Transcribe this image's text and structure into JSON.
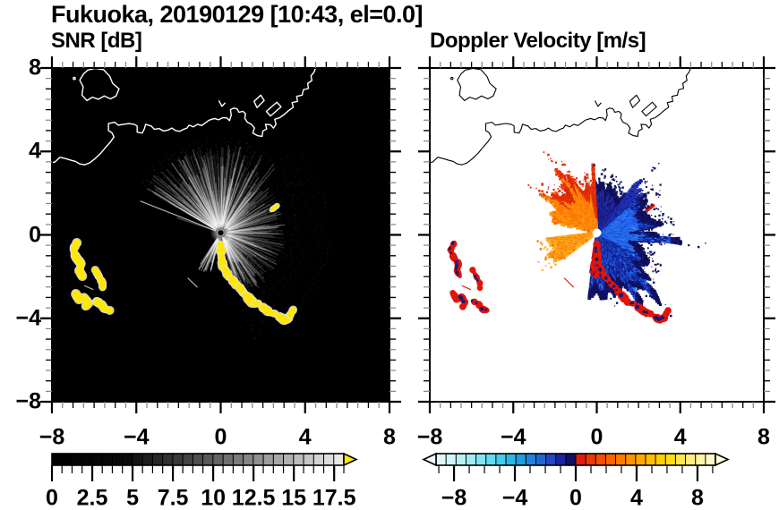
{
  "title": "Fukuoka, 20190129 [10:43, el=0.0]",
  "panels": {
    "snr": {
      "subtitle": "SNR [dB]",
      "background": "#000000",
      "coast_color": "#ffffff"
    },
    "velocity": {
      "subtitle": "Doppler Velocity [m/s]",
      "background": "#ffffff",
      "coast_color": "#000000"
    }
  },
  "axis": {
    "lim": [
      -8,
      8
    ],
    "x_labels": [
      "−8",
      "−4",
      "0",
      "4",
      "8"
    ],
    "x_values": [
      -8,
      -4,
      0,
      4,
      8
    ],
    "y_labels": [
      "8",
      "4",
      "0",
      "−4",
      "−8"
    ],
    "y_values": [
      8,
      4,
      0,
      -4,
      -8
    ],
    "minor_step": 0.5
  },
  "colorbars": {
    "snr": {
      "labels": [
        "0",
        "2.5",
        "5",
        "7.5",
        "10",
        "12.5",
        "15",
        "17.5"
      ],
      "values": [
        0,
        2.5,
        5,
        7.5,
        10,
        12.5,
        15,
        17.5
      ],
      "range": [
        0,
        18.1
      ],
      "cells": 29,
      "gray_stops": [
        [
          0,
          "#000000"
        ],
        [
          4.7,
          "#0b0b0b"
        ],
        [
          8,
          "#3c3c3c"
        ],
        [
          11,
          "#707070"
        ],
        [
          14,
          "#a6a6a6"
        ],
        [
          17.5,
          "#e2e2e2"
        ],
        [
          18.1,
          "#f0f0f0"
        ]
      ],
      "over_arrow": "#ffe800"
    },
    "velocity": {
      "labels": [
        "−8",
        "−4",
        "0",
        "4",
        "8"
      ],
      "values": [
        -8,
        -4,
        0,
        4,
        8
      ],
      "range": [
        -9.18,
        9.18
      ],
      "cells": 28,
      "under_arrow": "#eafdfd",
      "over_arrow": "#fffde6"
    }
  },
  "chart_data": {
    "type": "heatmap",
    "title": "Fukuoka, 20190129 [10:43, el=0.0]",
    "subplots": [
      "SNR [dB]",
      "Doppler Velocity [m/s]"
    ],
    "x_range": [
      -8,
      8
    ],
    "y_range": [
      -8,
      8
    ],
    "radar_center": [
      0.0,
      0.1
    ],
    "velocity_stops_negative": [
      [
        -9.2,
        "#e6fbfa"
      ],
      [
        -8,
        "#c9f4f6"
      ],
      [
        -6.5,
        "#8fe9f1"
      ],
      [
        -5,
        "#47d0ec"
      ],
      [
        -4,
        "#22abe4"
      ],
      [
        -3,
        "#1f86da"
      ],
      [
        -2.2,
        "#2361cc"
      ],
      [
        -1.5,
        "#2340c0"
      ],
      [
        -0.9,
        "#1b1ea0"
      ],
      [
        -0.45,
        "#12126e"
      ],
      [
        -0.05,
        "#0a0a42"
      ]
    ],
    "velocity_stops_positive": [
      [
        0.05,
        "#dc0f0f"
      ],
      [
        0.8,
        "#e93206"
      ],
      [
        1.8,
        "#f65300"
      ],
      [
        3,
        "#fe7d00"
      ],
      [
        4,
        "#ffa000"
      ],
      [
        5,
        "#ffc100"
      ],
      [
        6,
        "#ffdb00"
      ],
      [
        7,
        "#ffe95a"
      ],
      [
        8,
        "#fff49c"
      ],
      [
        9.2,
        "#fffbd8"
      ]
    ],
    "palettes": {
      "orange_core": [
        "#ff8c00",
        "#fb7400",
        "#ffa01e",
        "#f56a00",
        "#ff9612"
      ],
      "red_edge": [
        "#e32c0a",
        "#d82410",
        "#ef3c00"
      ],
      "west_orange": [
        "#ff9000",
        "#ffa81e",
        "#f57800",
        "#ffb62e"
      ],
      "navy": [
        "#1a1a84",
        "#141470",
        "#222ca0"
      ],
      "navy_dark": [
        "#10105c",
        "#0d0d4e",
        "#161678"
      ],
      "blue_bright": [
        "#1e5ee8",
        "#2f7cf4",
        "#1246d0",
        "#3c8cf8",
        "#1656e0"
      ],
      "blue_dark": [
        "#1733b4",
        "#101e8c",
        "#141c96",
        "#0f1474"
      ],
      "clutter_snr": "#ffe800",
      "clutter_vel": "#e21408",
      "fleck_navy": "#191975"
    },
    "echo": {
      "snr_fans": [
        [
          50,
          150,
          1.2,
          4.2,
          240,
          0.3
        ],
        [
          -75,
          50,
          0.8,
          3.2,
          260,
          0.22
        ],
        [
          237,
          256,
          0.9,
          2.1,
          26,
          0.45
        ],
        [
          284,
          304,
          0.8,
          1.7,
          14,
          0.3
        ]
      ],
      "snr_haze": [
        [
          50,
          150,
          4.5,
          1300,
          0.16
        ],
        [
          -75,
          50,
          5.3,
          1600,
          0.11
        ],
        [
          -75,
          -40,
          2.9,
          500,
          0.18
        ]
      ],
      "snr_special_rays": [
        [
          158.5,
          4.1,
          0.75
        ],
        [
          161,
          2.2,
          0.3
        ],
        [
          -63,
          2.5,
          0.5
        ],
        [
          -70,
          2.1,
          0.45
        ],
        [
          -93,
          1.5,
          0.55
        ]
      ],
      "vel_fans": {
        "blue": [
          -97,
          55,
          2.55
        ],
        "navy": [
          55,
          93,
          2.25
        ],
        "orange": [
          93,
          168,
          2.55
        ],
        "west_orange": [
          187,
          217,
          2.1
        ],
        "red_strip": [
          -99,
          -84,
          1.95
        ]
      },
      "dotted_ray_az": 157
    },
    "clutter": {
      "arc": [
        {
          "pts": [
            [
              0.0,
              -0.45
            ],
            [
              0.02,
              -0.9
            ]
          ],
          "w": 0.17
        },
        {
          "pts": [
            [
              0.03,
              -1.05
            ],
            [
              0.1,
              -1.5
            ]
          ],
          "w": 0.17
        },
        {
          "pts": [
            [
              0.18,
              -1.62
            ],
            [
              0.38,
              -2.0
            ]
          ],
          "w": 0.16
        },
        {
          "pts": [
            [
              0.5,
              -2.1
            ],
            [
              0.72,
              -2.38
            ]
          ],
          "w": 0.17
        },
        {
          "pts": [
            [
              0.88,
              -2.5
            ],
            [
              1.08,
              -2.78
            ]
          ],
          "w": 0.16
        },
        {
          "pts": [
            [
              1.22,
              -2.92
            ],
            [
              1.48,
              -3.22
            ]
          ],
          "w": 0.18
        },
        {
          "pts": [
            [
              1.62,
              -3.32
            ],
            [
              1.82,
              -3.28
            ]
          ],
          "w": 0.12
        },
        {
          "pts": [
            [
              2.0,
              -3.48
            ],
            [
              2.32,
              -3.72
            ],
            [
              2.58,
              -3.78
            ]
          ],
          "w": 0.17
        },
        {
          "pts": [
            [
              2.78,
              -3.92
            ],
            [
              3.02,
              -4.08
            ],
            [
              3.22,
              -3.98
            ]
          ],
          "w": 0.17
        },
        {
          "pts": [
            [
              3.3,
              -3.82
            ],
            [
              3.44,
              -3.58
            ]
          ],
          "w": 0.14
        }
      ],
      "southwest": [
        {
          "pts": [
            [
              -6.82,
              -0.38
            ],
            [
              -7.0,
              -0.72
            ],
            [
              -6.86,
              -1.08
            ],
            [
              -6.62,
              -1.38
            ],
            [
              -6.7,
              -1.72
            ],
            [
              -6.56,
              -1.98
            ]
          ],
          "w": 0.15
        },
        {
          "pts": [
            [
              -5.95,
              -1.68
            ],
            [
              -5.76,
              -2.02
            ],
            [
              -5.6,
              -2.32
            ],
            [
              -5.6,
              -2.54
            ]
          ],
          "w": 0.13
        },
        {
          "pts": [
            [
              -6.9,
              -2.78
            ],
            [
              -6.72,
              -3.08
            ],
            [
              -6.48,
              -3.0
            ],
            [
              -6.28,
              -3.28
            ],
            [
              -6.42,
              -3.44
            ]
          ],
          "w": 0.16
        },
        {
          "pts": [
            [
              -5.92,
              -3.18
            ],
            [
              -5.66,
              -3.32
            ],
            [
              -5.5,
              -3.56
            ],
            [
              -5.26,
              -3.62
            ]
          ],
          "w": 0.15
        }
      ],
      "ne_dash": {
        "pts": [
          [
            2.4,
            1.18
          ],
          [
            2.68,
            1.4
          ]
        ],
        "w": 0.08
      },
      "faint_dashes": [
        {
          "pts": [
            [
              -6.45,
              -2.44
            ],
            [
              -6.05,
              -2.62
            ]
          ],
          "w": 0.05
        },
        {
          "pts": [
            [
              -1.55,
              -2.08
            ],
            [
              -1.12,
              -2.5
            ]
          ],
          "w": 0.05
        }
      ]
    },
    "coastline": {
      "main": [
        [
          -8.15,
          3.42
        ],
        [
          -7.85,
          3.5
        ],
        [
          -7.62,
          3.72
        ],
        [
          -7.36,
          3.66
        ],
        [
          -7.1,
          3.58
        ],
        [
          -6.88,
          3.52
        ],
        [
          -6.68,
          3.4
        ],
        [
          -6.45,
          3.36
        ],
        [
          -6.2,
          3.46
        ],
        [
          -5.95,
          3.66
        ],
        [
          -5.68,
          3.92
        ],
        [
          -5.45,
          4.2
        ],
        [
          -5.22,
          4.46
        ],
        [
          -5.06,
          4.7
        ],
        [
          -5.16,
          4.9
        ],
        [
          -5.32,
          5.0
        ],
        [
          -5.32,
          5.34
        ],
        [
          -5.02,
          5.4
        ],
        [
          -4.86,
          5.26
        ],
        [
          -4.6,
          5.3
        ],
        [
          -4.36,
          5.34
        ],
        [
          -4.1,
          5.3
        ],
        [
          -3.96,
          5.22
        ],
        [
          -3.96,
          4.92
        ],
        [
          -3.72,
          4.88
        ],
        [
          -3.62,
          5.08
        ],
        [
          -3.56,
          5.3
        ],
        [
          -3.3,
          5.22
        ],
        [
          -3.14,
          5.06
        ],
        [
          -2.92,
          5.1
        ],
        [
          -2.72,
          4.98
        ],
        [
          -2.5,
          5.02
        ],
        [
          -2.32,
          5.12
        ],
        [
          -2.14,
          5.0
        ],
        [
          -1.95,
          4.96
        ],
        [
          -1.76,
          5.06
        ],
        [
          -1.6,
          5.12
        ],
        [
          -1.5,
          5.26
        ],
        [
          -1.3,
          5.18
        ],
        [
          -1.1,
          5.3
        ],
        [
          -0.9,
          5.24
        ],
        [
          -0.74,
          5.36
        ],
        [
          -0.55,
          5.5
        ],
        [
          -0.3,
          5.58
        ],
        [
          -0.1,
          5.52
        ],
        [
          0.1,
          5.62
        ],
        [
          0.3,
          5.6
        ],
        [
          0.42,
          5.48
        ],
        [
          0.5,
          5.74
        ],
        [
          0.46,
          6.0
        ],
        [
          0.62,
          6.08
        ],
        [
          0.78,
          6.04
        ],
        [
          0.86,
          5.88
        ],
        [
          1.06,
          5.92
        ],
        [
          1.18,
          5.8
        ],
        [
          1.14,
          5.6
        ],
        [
          1.26,
          5.4
        ],
        [
          1.46,
          5.3
        ],
        [
          1.6,
          5.12
        ],
        [
          1.52,
          4.88
        ],
        [
          1.74,
          4.76
        ],
        [
          1.96,
          4.72
        ],
        [
          2.0,
          4.98
        ],
        [
          2.18,
          5.08
        ],
        [
          2.12,
          5.3
        ],
        [
          2.36,
          5.28
        ],
        [
          2.5,
          5.12
        ],
        [
          2.62,
          5.3
        ],
        [
          2.56,
          5.54
        ],
        [
          2.8,
          5.62
        ],
        [
          3.02,
          5.78
        ],
        [
          3.22,
          5.96
        ],
        [
          3.44,
          6.12
        ],
        [
          3.38,
          6.34
        ],
        [
          3.64,
          6.4
        ],
        [
          3.6,
          6.64
        ],
        [
          3.86,
          6.7
        ],
        [
          3.92,
          6.96
        ],
        [
          4.16,
          7.02
        ],
        [
          4.12,
          7.26
        ],
        [
          4.32,
          7.4
        ],
        [
          4.28,
          7.62
        ],
        [
          4.42,
          7.8
        ],
        [
          4.54,
          8.1
        ]
      ],
      "island": [
        [
          -6.3,
          7.9
        ],
        [
          -5.95,
          7.98
        ],
        [
          -5.55,
          7.92
        ],
        [
          -5.26,
          7.6
        ],
        [
          -5.12,
          7.26
        ],
        [
          -4.82,
          7.0
        ],
        [
          -4.96,
          6.66
        ],
        [
          -5.22,
          6.52
        ],
        [
          -5.52,
          6.66
        ],
        [
          -5.8,
          6.5
        ],
        [
          -6.08,
          6.6
        ],
        [
          -6.34,
          6.44
        ],
        [
          -6.58,
          6.7
        ],
        [
          -6.52,
          7.1
        ],
        [
          -6.68,
          7.42
        ],
        [
          -6.5,
          7.72
        ]
      ],
      "islet": [
        -6.94,
        7.5
      ],
      "checkmark": [
        [
          -0.08,
          6.42
        ],
        [
          0.06,
          6.16
        ],
        [
          0.2,
          6.32
        ]
      ],
      "piers": [
        [
          [
            1.72,
            6.1
          ],
          [
            2.06,
            6.44
          ],
          [
            1.9,
            6.7
          ],
          [
            1.58,
            6.4
          ]
        ],
        [
          [
            2.36,
            5.7
          ],
          [
            2.86,
            6.14
          ],
          [
            2.66,
            6.36
          ],
          [
            2.16,
            5.92
          ]
        ]
      ]
    }
  }
}
